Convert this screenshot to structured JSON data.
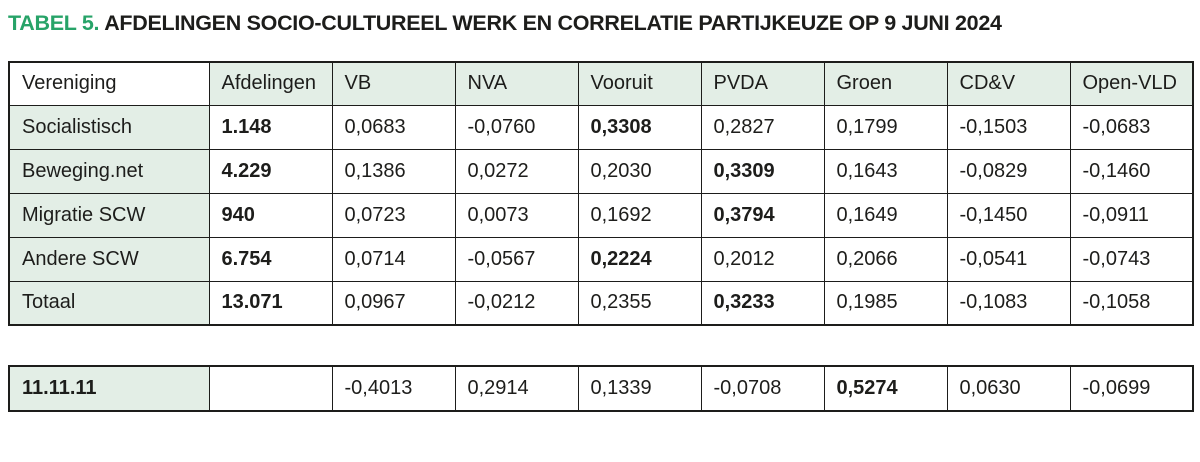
{
  "title": {
    "prefix": "TABEL 5.",
    "label": "AFDELINGEN SOCIO-CULTUREEL WERK EN CORRELATIE PARTIJKEUZE OP 9 JUNI 2024"
  },
  "colors": {
    "accent_green": "#27a368",
    "cell_fill_green": "#e3eee6",
    "border": "#1d1d1b",
    "text": "#1d1d1b"
  },
  "chart_data": {
    "type": "table",
    "title": "TABEL 5. AFDELINGEN SOCIO-CULTUREEL WERK EN CORRELATIE PARTIJKEUZE OP 9 JUNI 2024",
    "columns": [
      "Vereniging",
      "Afdelingen",
      "VB",
      "NVA",
      "Vooruit",
      "PVDA",
      "Groen",
      "CD&V",
      "Open-VLD"
    ],
    "main_rows": [
      {
        "cells": [
          "Socialistisch",
          "1.148",
          "0,0683",
          "-0,0760",
          "0,3308",
          "0,2827",
          "0,1799",
          "-0,1503",
          "-0,0683"
        ],
        "bold_cols": [
          1,
          4
        ]
      },
      {
        "cells": [
          "Beweging.net",
          "4.229",
          "0,1386",
          "0,0272",
          "0,2030",
          "0,3309",
          "0,1643",
          "-0,0829",
          "-0,1460"
        ],
        "bold_cols": [
          1,
          5
        ]
      },
      {
        "cells": [
          "Migratie SCW",
          "940",
          "0,0723",
          "0,0073",
          "0,1692",
          "0,3794",
          "0,1649",
          "-0,1450",
          "-0,0911"
        ],
        "bold_cols": [
          1,
          5
        ]
      },
      {
        "cells": [
          "Andere SCW",
          "6.754",
          "0,0714",
          "-0,0567",
          "0,2224",
          "0,2012",
          "0,2066",
          "-0,0541",
          "-0,0743"
        ],
        "bold_cols": [
          1,
          4
        ]
      },
      {
        "cells": [
          "Totaal",
          "13.071",
          "0,0967",
          "-0,0212",
          "0,2355",
          "0,3233",
          "0,1985",
          "-0,1083",
          "-0,1058"
        ],
        "bold_cols": [
          1,
          5
        ]
      }
    ],
    "extra_rows": [
      {
        "cells": [
          "11.11.11",
          "",
          "-0,4013",
          "0,2914",
          "0,1339",
          "-0,0708",
          "0,5274",
          "0,0630",
          "-0,0699"
        ],
        "bold_cols": [
          0,
          6
        ]
      }
    ]
  }
}
